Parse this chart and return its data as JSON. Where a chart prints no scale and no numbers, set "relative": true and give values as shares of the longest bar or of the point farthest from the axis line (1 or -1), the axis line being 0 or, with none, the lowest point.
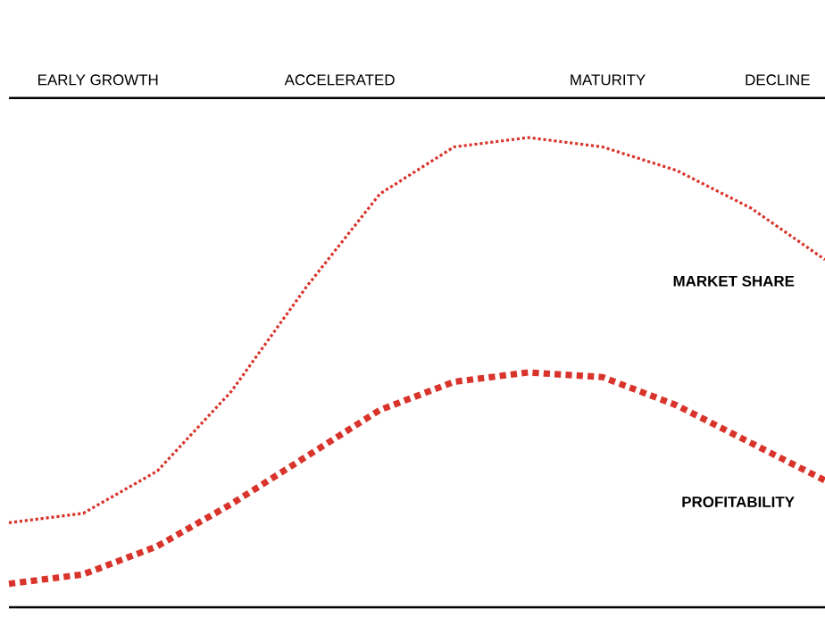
{
  "chart_data": {
    "type": "line",
    "relative": true,
    "line_style": "dotted",
    "marker": "none",
    "categories": [
      null,
      null,
      null,
      null,
      null,
      null,
      null,
      null,
      null,
      null,
      null,
      null
    ],
    "series": [
      {
        "name": "MARKET SHARE",
        "color": "#d9342b",
        "values": [
          0.18,
          0.2,
          0.29,
          0.46,
          0.68,
          0.88,
          0.98,
          1.0,
          0.98,
          0.93,
          0.85,
          0.74
        ]
      },
      {
        "name": "PROFITABILITY",
        "color": "#d9342b",
        "values": [
          0.05,
          0.07,
          0.13,
          0.22,
          0.32,
          0.42,
          0.48,
          0.5,
          0.49,
          0.43,
          0.35,
          0.27
        ]
      }
    ],
    "annotations": [
      "EARLY GROWTH",
      "ACCELERATED",
      "MATURITY",
      "DECLINE"
    ]
  }
}
